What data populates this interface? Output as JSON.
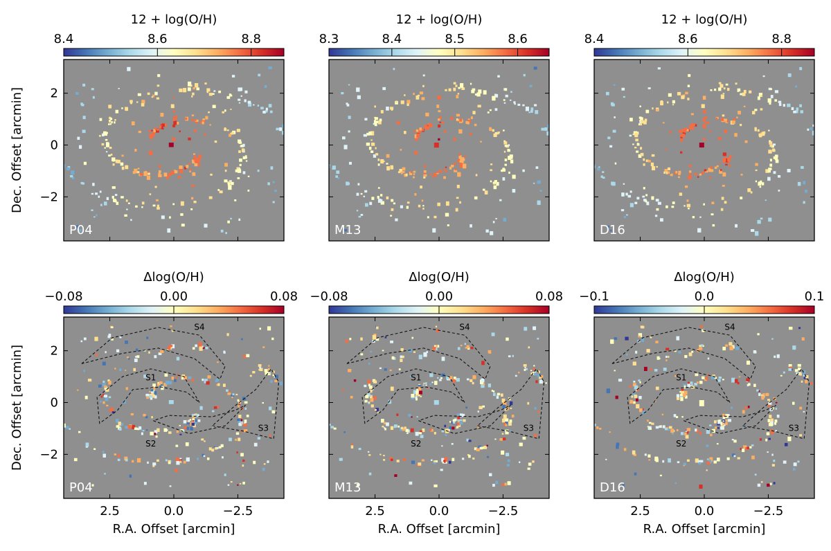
{
  "colors": {
    "panel_bg": "#8f8f8f",
    "cmap": [
      "#313695",
      "#4575b4",
      "#74add1",
      "#abd9e9",
      "#e0f3f8",
      "#ffffbf",
      "#fee090",
      "#fdae61",
      "#f46d43",
      "#d73027",
      "#a50026"
    ]
  },
  "chart_data": [
    {
      "id": "top-P04",
      "type": "heatmap",
      "method": "P04",
      "colorbar_label": "12 + log(O/H)",
      "clim": [
        8.4,
        8.87
      ],
      "cbar_ticks": [
        "8.4",
        "8.6",
        "8.8"
      ],
      "cbar_tick_values": [
        8.4,
        8.6,
        8.8
      ],
      "ylabel": "Dec. Offset [arcmin]",
      "yticks": [
        "2",
        "0",
        "−2"
      ],
      "ytick_values": [
        2,
        0,
        -2
      ],
      "xlabel": "",
      "xlim": [
        4.3,
        -4.3
      ],
      "ylim": [
        -3.7,
        3.3
      ]
    },
    {
      "id": "top-M13",
      "type": "heatmap",
      "method": "M13",
      "colorbar_label": "12 + log(O/H)",
      "clim": [
        8.3,
        8.65
      ],
      "cbar_ticks": [
        "8.3",
        "8.4",
        "8.5",
        "8.6"
      ],
      "cbar_tick_values": [
        8.3,
        8.4,
        8.5,
        8.6
      ],
      "ylabel": "",
      "xlabel": "",
      "xlim": [
        4.3,
        -4.3
      ],
      "ylim": [
        -3.7,
        3.3
      ]
    },
    {
      "id": "top-D16",
      "type": "heatmap",
      "method": "D16",
      "colorbar_label": "12 + log(O/H)",
      "clim": [
        8.4,
        8.87
      ],
      "cbar_ticks": [
        "8.4",
        "8.6",
        "8.8"
      ],
      "cbar_tick_values": [
        8.4,
        8.6,
        8.8
      ],
      "ylabel": "",
      "xlabel": "",
      "xlim": [
        4.3,
        -4.3
      ],
      "ylim": [
        -3.7,
        3.3
      ]
    },
    {
      "id": "bot-P04",
      "type": "heatmap",
      "method": "P04",
      "colorbar_label": "Δlog(O/H)",
      "clim": [
        -0.08,
        0.08
      ],
      "cbar_ticks": [
        "−0.08",
        "0.00",
        "0.08"
      ],
      "cbar_tick_values": [
        -0.08,
        0.0,
        0.08
      ],
      "ylabel": "Dec. Offset [arcmin]",
      "yticks": [
        "2",
        "0",
        "−2"
      ],
      "ytick_values": [
        2,
        0,
        -2
      ],
      "xlabel": "R.A. Offset [arcmin]",
      "xticks": [
        "2.5",
        "0.0",
        "−2.5"
      ],
      "xtick_values": [
        2.5,
        0.0,
        -2.5
      ],
      "xlim": [
        4.3,
        -4.3
      ],
      "ylim": [
        -3.7,
        3.3
      ],
      "spiral_labels": [
        "S1",
        "S2",
        "S3",
        "S4"
      ]
    },
    {
      "id": "bot-M13",
      "type": "heatmap",
      "method": "M13",
      "colorbar_label": "Δlog(O/H)",
      "clim": [
        -0.08,
        0.08
      ],
      "cbar_ticks": [
        "−0.08",
        "0.00",
        "0.08"
      ],
      "cbar_tick_values": [
        -0.08,
        0.0,
        0.08
      ],
      "ylabel": "",
      "xlabel": "R.A. Offset [arcmin]",
      "xticks": [
        "2.5",
        "0.0",
        "−2.5"
      ],
      "xtick_values": [
        2.5,
        0.0,
        -2.5
      ],
      "xlim": [
        4.3,
        -4.3
      ],
      "ylim": [
        -3.7,
        3.3
      ],
      "spiral_labels": [
        "S1",
        "S2",
        "S3",
        "S4"
      ]
    },
    {
      "id": "bot-D16",
      "type": "heatmap",
      "method": "D16",
      "colorbar_label": "Δlog(O/H)",
      "clim": [
        -0.1,
        0.1
      ],
      "cbar_ticks": [
        "−0.1",
        "0.0",
        "0.1"
      ],
      "cbar_tick_values": [
        -0.1,
        0.0,
        0.1
      ],
      "ylabel": "",
      "xlabel": "R.A. Offset [arcmin]",
      "xticks": [
        "2.5",
        "0.0",
        "−2.5"
      ],
      "xtick_values": [
        2.5,
        0.0,
        -2.5
      ],
      "xlim": [
        4.3,
        -4.3
      ],
      "ylim": [
        -3.7,
        3.3
      ],
      "spiral_labels": [
        "S1",
        "S2",
        "S3",
        "S4"
      ]
    }
  ]
}
